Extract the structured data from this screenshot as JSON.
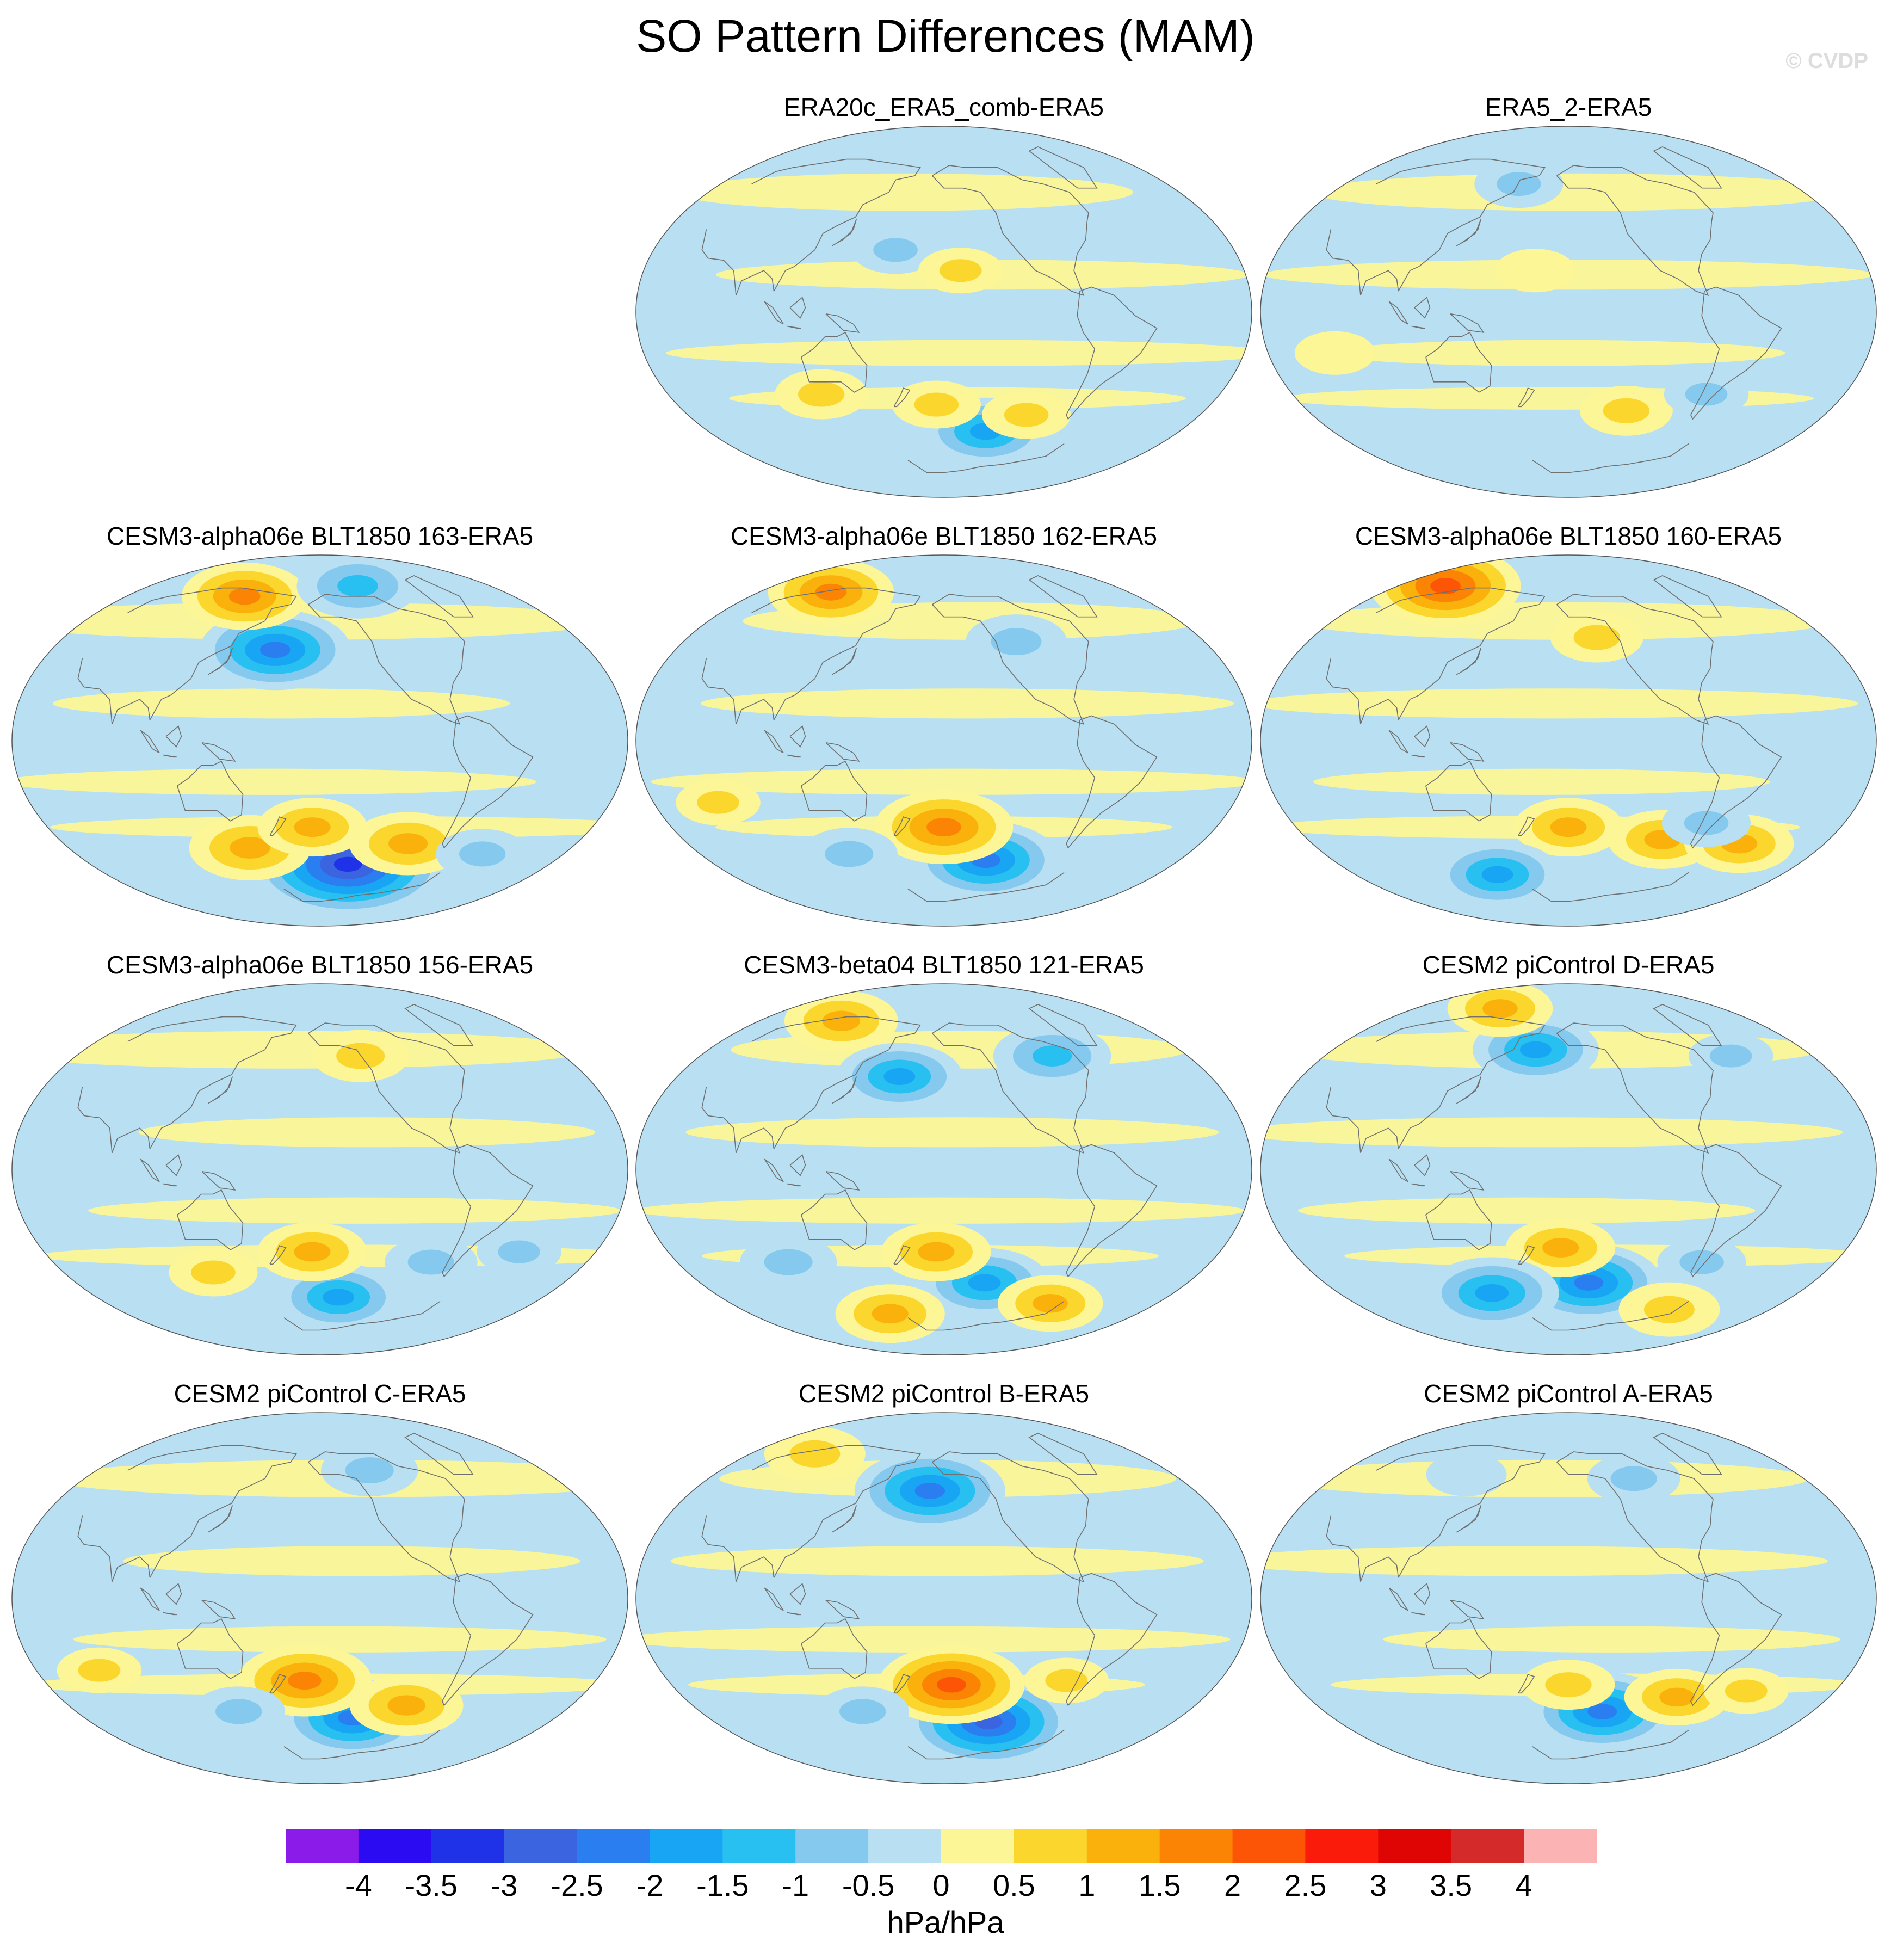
{
  "title": "SO Pattern Differences (MAM)",
  "copyright": "© CVDP",
  "chart_data": {
    "type": "heatmap",
    "projection": "Robinson / Hammer-style global map, Pacific-centered",
    "variable": "SO pattern difference",
    "season": "MAM",
    "units": "hPa/hPa",
    "colorbar": {
      "levels": [
        -4,
        -3.5,
        -3,
        -2.5,
        -2,
        -1.5,
        -1,
        -0.5,
        0,
        0.5,
        1,
        1.5,
        2,
        2.5,
        3,
        3.5,
        4
      ],
      "tick_labels": [
        "-4",
        "-3.5",
        "-3",
        "-2.5",
        "-2",
        "-1.5",
        "-1",
        "-0.5",
        "0",
        "0.5",
        "1",
        "1.5",
        "2",
        "2.5",
        "3",
        "3.5",
        "4"
      ],
      "colors": [
        "#8b1be8",
        "#2b0cf2",
        "#1f32e8",
        "#3a64e0",
        "#2a7ef0",
        "#18a6f4",
        "#27c0f0",
        "#86c9ee",
        "#b8e0f2",
        "#fcf696",
        "#fbd72e",
        "#fbb10c",
        "#fb8405",
        "#fb5505",
        "#fb1b0a",
        "#df0505",
        "#d42a2a",
        "#fbb3b3"
      ]
    },
    "panels": [
      {
        "title": "ERA20c_ERA5_comb-ERA5",
        "features": [
          {
            "lon": 232,
            "lat": -58,
            "v": -1.6
          },
          {
            "lon": 195,
            "lat": -45,
            "v": 0.7
          },
          {
            "lon": 258,
            "lat": -50,
            "v": 0.7
          },
          {
            "lon": 170,
            "lat": 30,
            "v": -0.7
          },
          {
            "lon": 120,
            "lat": -40,
            "v": 0.8
          },
          {
            "lon": 210,
            "lat": 20,
            "v": 0.6
          }
        ]
      },
      {
        "title": "ERA5_2-ERA5",
        "features": [
          {
            "lon": 160,
            "lat": 62,
            "v": -0.7
          },
          {
            "lon": 240,
            "lat": -48,
            "v": 0.8
          },
          {
            "lon": 290,
            "lat": -40,
            "v": -0.6
          },
          {
            "lon": 60,
            "lat": -20,
            "v": 0.5
          },
          {
            "lon": 180,
            "lat": 20,
            "v": 0.5
          }
        ]
      },
      {
        "title": "CESM3-alpha06e BLT1850 163-ERA5",
        "features": [
          {
            "lon": 222,
            "lat": -60,
            "v": -3.3
          },
          {
            "lon": 170,
            "lat": 44,
            "v": -2.2
          },
          {
            "lon": 130,
            "lat": 70,
            "v": 1.6
          },
          {
            "lon": 150,
            "lat": -52,
            "v": 1.5
          },
          {
            "lon": 262,
            "lat": -50,
            "v": 1.4
          },
          {
            "lon": 195,
            "lat": -42,
            "v": 1.2
          },
          {
            "lon": 240,
            "lat": 75,
            "v": -1.5
          },
          {
            "lon": 320,
            "lat": -55,
            "v": -0.8
          }
        ]
      },
      {
        "title": "CESM3-alpha06e BLT1850 162-ERA5",
        "features": [
          {
            "lon": 232,
            "lat": -58,
            "v": -2.1
          },
          {
            "lon": 200,
            "lat": -42,
            "v": 1.9
          },
          {
            "lon": 90,
            "lat": 72,
            "v": 1.6
          },
          {
            "lon": 250,
            "lat": 48,
            "v": -1.0
          },
          {
            "lon": 130,
            "lat": -55,
            "v": -0.9
          },
          {
            "lon": 60,
            "lat": -30,
            "v": 0.6
          }
        ]
      },
      {
        "title": "CESM3-alpha06e BLT1850 160-ERA5",
        "features": [
          {
            "lon": 70,
            "lat": 75,
            "v": 2.2
          },
          {
            "lon": 200,
            "lat": -42,
            "v": 1.2
          },
          {
            "lon": 140,
            "lat": -65,
            "v": -1.6
          },
          {
            "lon": 265,
            "lat": -48,
            "v": 1.2
          },
          {
            "lon": 320,
            "lat": -50,
            "v": 1.2
          },
          {
            "lon": 290,
            "lat": -40,
            "v": -0.7
          },
          {
            "lon": 220,
            "lat": 50,
            "v": 0.8
          }
        ]
      },
      {
        "title": "CESM3-alpha06e BLT1850 156-ERA5",
        "features": [
          {
            "lon": 215,
            "lat": -62,
            "v": -1.6
          },
          {
            "lon": 195,
            "lat": -40,
            "v": 1.2
          },
          {
            "lon": 230,
            "lat": 55,
            "v": 0.9
          },
          {
            "lon": 275,
            "lat": -45,
            "v": -0.8
          },
          {
            "lon": 125,
            "lat": -50,
            "v": 0.7
          },
          {
            "lon": 330,
            "lat": -40,
            "v": -0.6
          }
        ]
      },
      {
        "title": "CESM3-beta04 BLT1850 121-ERA5",
        "features": [
          {
            "lon": 230,
            "lat": -55,
            "v": -1.7
          },
          {
            "lon": 195,
            "lat": -40,
            "v": 1.2
          },
          {
            "lon": 170,
            "lat": 45,
            "v": -1.6
          },
          {
            "lon": 280,
            "lat": 55,
            "v": -1.4
          },
          {
            "lon": 100,
            "lat": 72,
            "v": 1.3
          },
          {
            "lon": 150,
            "lat": -70,
            "v": 1.2
          },
          {
            "lon": 290,
            "lat": -65,
            "v": 1.1
          },
          {
            "lon": 95,
            "lat": -45,
            "v": -0.9
          }
        ]
      },
      {
        "title": "CESM2 piControl D-ERA5",
        "features": [
          {
            "lon": 215,
            "lat": -55,
            "v": -2.1
          },
          {
            "lon": 175,
            "lat": 58,
            "v": -1.6
          },
          {
            "lon": 195,
            "lat": -38,
            "v": 1.2
          },
          {
            "lon": 140,
            "lat": -60,
            "v": -1.8
          },
          {
            "lon": 120,
            "lat": 78,
            "v": 1.1
          },
          {
            "lon": 290,
            "lat": -45,
            "v": -0.7
          },
          {
            "lon": 290,
            "lat": -68,
            "v": 1.0
          },
          {
            "lon": 320,
            "lat": 55,
            "v": -0.6
          }
        ]
      },
      {
        "title": "CESM2 piControl C-ERA5",
        "features": [
          {
            "lon": 225,
            "lat": -58,
            "v": -2.1
          },
          {
            "lon": 190,
            "lat": -40,
            "v": 1.8
          },
          {
            "lon": 262,
            "lat": -52,
            "v": 1.3
          },
          {
            "lon": 140,
            "lat": -55,
            "v": -0.8
          },
          {
            "lon": 240,
            "lat": 62,
            "v": -0.9
          },
          {
            "lon": 60,
            "lat": -35,
            "v": 0.6
          }
        ]
      },
      {
        "title": "CESM2 piControl B-ERA5",
        "features": [
          {
            "lon": 235,
            "lat": -60,
            "v": -2.6
          },
          {
            "lon": 205,
            "lat": -42,
            "v": 2.1
          },
          {
            "lon": 190,
            "lat": 52,
            "v": -2.2
          },
          {
            "lon": 80,
            "lat": 70,
            "v": 1.0
          },
          {
            "lon": 140,
            "lat": -55,
            "v": -0.8
          },
          {
            "lon": 280,
            "lat": -40,
            "v": 0.6
          }
        ]
      },
      {
        "title": "CESM2 piControl A-ERA5",
        "features": [
          {
            "lon": 225,
            "lat": -55,
            "v": -2.1
          },
          {
            "lon": 200,
            "lat": -42,
            "v": 0.8
          },
          {
            "lon": 275,
            "lat": -48,
            "v": 1.1
          },
          {
            "lon": 250,
            "lat": 58,
            "v": -0.8
          },
          {
            "lon": 320,
            "lat": -45,
            "v": 0.6
          },
          {
            "lon": 120,
            "lat": 60,
            "v": -0.5
          }
        ]
      }
    ]
  }
}
